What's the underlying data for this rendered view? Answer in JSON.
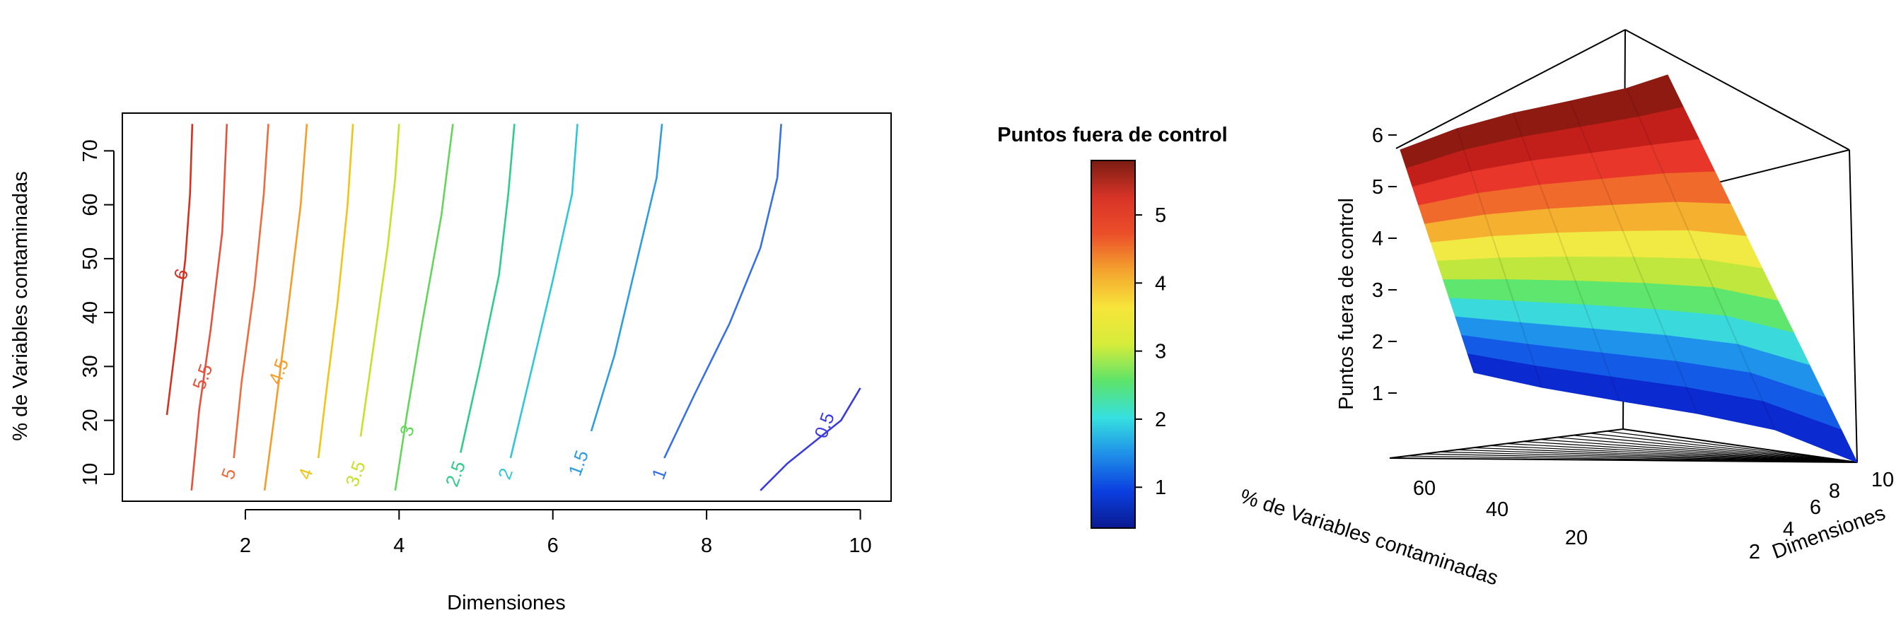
{
  "chart_data": [
    {
      "type": "contour",
      "xlabel": "Dimensiones",
      "ylabel": "% de Variables contaminadas",
      "xlim": [
        0.4,
        10.4
      ],
      "ylim": [
        5,
        77
      ],
      "xticks": [
        2,
        4,
        6,
        8,
        10
      ],
      "yticks": [
        10,
        20,
        30,
        40,
        50,
        60,
        70
      ],
      "legend": "none",
      "contours": [
        {
          "level": "6",
          "color": "#d7301f",
          "points": [
            [
              0.98,
              21
            ],
            [
              1.1,
              35
            ],
            [
              1.22,
              50
            ],
            [
              1.28,
              62
            ],
            [
              1.31,
              75
            ]
          ],
          "label_at": [
            1.18,
            47
          ]
        },
        {
          "level": "5.5",
          "color": "#e8503a",
          "points": [
            [
              1.3,
              7
            ],
            [
              1.4,
              22
            ],
            [
              1.55,
              37
            ],
            [
              1.7,
              55
            ],
            [
              1.76,
              75
            ]
          ],
          "label_at": [
            1.46,
            28
          ]
        },
        {
          "level": "5",
          "color": "#f06a3c",
          "points": [
            [
              1.85,
              13
            ],
            [
              1.95,
              27
            ],
            [
              2.12,
              45
            ],
            [
              2.24,
              62
            ],
            [
              2.3,
              75
            ]
          ],
          "label_at": [
            1.8,
            10
          ]
        },
        {
          "level": "4.5",
          "color": "#f59c2a",
          "points": [
            [
              2.25,
              7
            ],
            [
              2.38,
              21
            ],
            [
              2.55,
              40
            ],
            [
              2.72,
              60
            ],
            [
              2.8,
              75
            ]
          ],
          "label_at": [
            2.45,
            29
          ]
        },
        {
          "level": "4",
          "color": "#f0c419",
          "points": [
            [
              2.95,
              13
            ],
            [
              3.05,
              25
            ],
            [
              3.2,
              42
            ],
            [
              3.33,
              60
            ],
            [
              3.4,
              75
            ]
          ],
          "label_at": [
            2.8,
            10
          ]
        },
        {
          "level": "3.5",
          "color": "#c9e029",
          "points": [
            [
              3.5,
              17
            ],
            [
              3.65,
              32
            ],
            [
              3.85,
              52
            ],
            [
              3.95,
              65
            ],
            [
              4.0,
              75
            ]
          ],
          "label_at": [
            3.45,
            10
          ]
        },
        {
          "level": "3",
          "color": "#63d65a",
          "points": [
            [
              3.95,
              7
            ],
            [
              4.1,
              21
            ],
            [
              4.3,
              38
            ],
            [
              4.55,
              58
            ],
            [
              4.7,
              75
            ]
          ],
          "label_at": [
            4.12,
            18
          ]
        },
        {
          "level": "2.5",
          "color": "#2ecc8b",
          "points": [
            [
              4.8,
              14
            ],
            [
              5.05,
              30
            ],
            [
              5.3,
              47
            ],
            [
              5.42,
              62
            ],
            [
              5.5,
              75
            ]
          ],
          "label_at": [
            4.75,
            10
          ]
        },
        {
          "level": "2",
          "color": "#2fc6d6",
          "points": [
            [
              5.45,
              13
            ],
            [
              5.7,
              28
            ],
            [
              6.0,
              46
            ],
            [
              6.25,
              62
            ],
            [
              6.32,
              75
            ]
          ],
          "label_at": [
            5.4,
            10
          ]
        },
        {
          "level": "1.5",
          "color": "#2e9ce0",
          "points": [
            [
              6.5,
              18
            ],
            [
              6.8,
              32
            ],
            [
              7.1,
              50
            ],
            [
              7.35,
              65
            ],
            [
              7.42,
              75
            ]
          ],
          "label_at": [
            6.35,
            12
          ]
        },
        {
          "level": "1",
          "color": "#3670e6",
          "points": [
            [
              7.45,
              13
            ],
            [
              7.85,
              25
            ],
            [
              8.3,
              38
            ],
            [
              8.7,
              52
            ],
            [
              8.92,
              65
            ],
            [
              8.97,
              75
            ]
          ],
          "label_at": [
            7.4,
            10
          ]
        },
        {
          "level": "0.5",
          "color": "#3c3cdc",
          "points": [
            [
              8.7,
              7
            ],
            [
              9.05,
              12
            ],
            [
              9.4,
              16
            ],
            [
              9.75,
              20
            ],
            [
              10.0,
              26
            ]
          ],
          "label_at": [
            9.55,
            19
          ]
        }
      ]
    },
    {
      "type": "colorbar",
      "title": "Puntos fuera de control",
      "range": [
        0.4,
        5.8
      ],
      "ticks": [
        1,
        2,
        3,
        4,
        5
      ],
      "colors": [
        "#0a1a8f",
        "#0b3fe0",
        "#1f8fe8",
        "#35e0e0",
        "#5de36a",
        "#d6ec3a",
        "#f7e53a",
        "#f4a32e",
        "#ec4f2a",
        "#d83327",
        "#7a1c12"
      ]
    },
    {
      "type": "surface",
      "zlabel": "Puntos fuera de control",
      "xlabel": "Dimensiones",
      "ylabel": "% de Variables contaminadas",
      "zticks": [
        1,
        2,
        3,
        4,
        5,
        6
      ],
      "xticks": [
        2,
        4,
        6,
        8,
        10
      ],
      "yticks": [
        20,
        40,
        60
      ],
      "zrange": [
        0.3,
        6.4
      ],
      "band_colors": [
        "#0b2ad0",
        "#135be6",
        "#1f93ec",
        "#3ad9dc",
        "#5fe66e",
        "#bfe73e",
        "#f1ea44",
        "#f6b030",
        "#ef6a2b",
        "#e8372a",
        "#c21f1a",
        "#8f1a12"
      ]
    }
  ]
}
